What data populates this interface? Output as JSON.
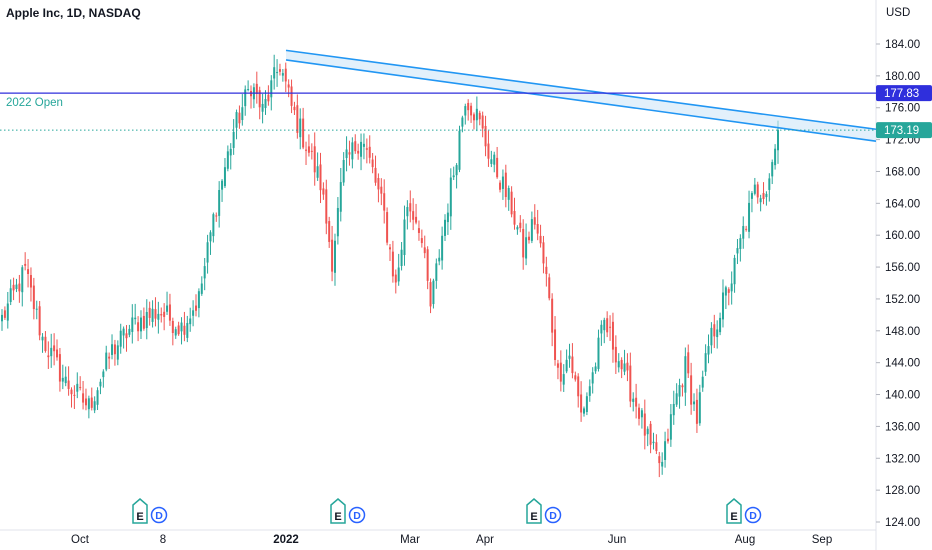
{
  "title": "Apple Inc, 1D, NASDAQ",
  "currency": "USD",
  "hline_label": "2022 Open",
  "last_price_label": "173.19",
  "hline_price_label": "177.83",
  "earnings_markers": [
    {
      "e": "E",
      "d": "D"
    },
    {
      "e": "E",
      "d": "D"
    },
    {
      "e": "E",
      "d": "D"
    },
    {
      "e": "E",
      "d": "D"
    }
  ],
  "colors": {
    "up": "#26a69a",
    "down": "#ef5350",
    "trend": "#2196f3",
    "channel_fill": "#cfe6f8",
    "hline": "#2f2fdc",
    "last_line": "#26a69a",
    "earn_e": "#26a69a",
    "earn_d": "#2962ff"
  },
  "chart_data": {
    "type": "candlestick",
    "symbol": "Apple Inc",
    "interval": "1D",
    "exchange": "NASDAQ",
    "yaxis": {
      "min": 124,
      "max": 188,
      "ticks": [
        124,
        128,
        132,
        136,
        140,
        144,
        148,
        152,
        156,
        160,
        164,
        168,
        172,
        176,
        180,
        184
      ]
    },
    "xaxis_ticks": [
      {
        "label": "Oct",
        "bold": false
      },
      {
        "label": "8",
        "bold": false
      },
      {
        "label": "2022",
        "bold": true
      },
      {
        "label": "Mar",
        "bold": false
      },
      {
        "label": "Apr",
        "bold": false
      },
      {
        "label": "Jun",
        "bold": false
      },
      {
        "label": "Aug",
        "bold": false
      },
      {
        "label": "Sep",
        "bold": false
      }
    ],
    "horizontal_line": {
      "label": "2022 Open",
      "price": 177.83
    },
    "last_price": 173.19,
    "trend_channel": {
      "start": {
        "bar": 0,
        "upper": 183.2,
        "lower": 182.0
      },
      "end": {
        "bar": 1,
        "upper": 173.3,
        "lower": 171.8
      }
    },
    "anchors": [
      [
        0,
        149.5
      ],
      [
        8,
        155.5
      ],
      [
        14,
        147.0
      ],
      [
        22,
        141.5
      ],
      [
        30,
        138.5
      ],
      [
        38,
        145.5
      ],
      [
        46,
        149.0
      ],
      [
        54,
        150.5
      ],
      [
        62,
        148.5
      ],
      [
        68,
        152.0
      ],
      [
        74,
        164.0
      ],
      [
        80,
        173.0
      ],
      [
        86,
        179.0
      ],
      [
        90,
        175.5
      ],
      [
        96,
        181.5
      ],
      [
        100,
        176.0
      ],
      [
        106,
        170.5
      ],
      [
        110,
        166.5
      ],
      [
        114,
        157.0
      ],
      [
        118,
        168.5
      ],
      [
        124,
        172.5
      ],
      [
        128,
        168.0
      ],
      [
        132,
        162.5
      ],
      [
        136,
        153.5
      ],
      [
        140,
        164.0
      ],
      [
        144,
        161.5
      ],
      [
        148,
        151.0
      ],
      [
        152,
        160.0
      ],
      [
        156,
        168.0
      ],
      [
        160,
        177.5
      ],
      [
        164,
        175.0
      ],
      [
        168,
        170.5
      ],
      [
        172,
        167.0
      ],
      [
        176,
        163.5
      ],
      [
        180,
        158.0
      ],
      [
        184,
        162.0
      ],
      [
        188,
        154.5
      ],
      [
        192,
        142.5
      ],
      [
        196,
        145.0
      ],
      [
        200,
        137.5
      ],
      [
        204,
        142.5
      ],
      [
        208,
        149.0
      ],
      [
        212,
        145.5
      ],
      [
        216,
        141.5
      ],
      [
        220,
        138.0
      ],
      [
        224,
        133.0
      ],
      [
        228,
        131.0
      ],
      [
        232,
        138.5
      ],
      [
        236,
        143.5
      ],
      [
        240,
        137.0
      ],
      [
        244,
        146.0
      ],
      [
        248,
        150.5
      ],
      [
        252,
        154.5
      ],
      [
        256,
        160.5
      ],
      [
        260,
        165.5
      ],
      [
        264,
        166.0
      ],
      [
        268,
        172.5
      ]
    ],
    "candles": []
  }
}
